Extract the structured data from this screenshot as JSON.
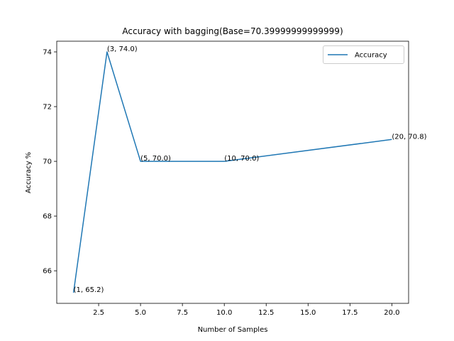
{
  "chart_data": {
    "type": "line",
    "title": "Accuracy with bagging(Base=70.39999999999999)",
    "xlabel": "Number of Samples",
    "ylabel": "Accuracy %",
    "xlim": [
      -0.0,
      21.0
    ],
    "ylim": [
      64.81,
      74.39
    ],
    "xticks": [
      "2.5",
      "5.0",
      "7.5",
      "10.0",
      "12.5",
      "15.0",
      "17.5",
      "20.0"
    ],
    "yticks": [
      "66",
      "68",
      "70",
      "72",
      "74"
    ],
    "xtick_values": [
      2.5,
      5.0,
      7.5,
      10.0,
      12.5,
      15.0,
      17.5,
      20.0
    ],
    "ytick_values": [
      66,
      68,
      70,
      72,
      74
    ],
    "grid": false,
    "legend_position": "top-right",
    "series": [
      {
        "name": "Accuracy",
        "color": "#1f77b4",
        "x": [
          1,
          3,
          5,
          10,
          20
        ],
        "y": [
          65.2,
          74.0,
          70.0,
          70.0,
          70.8
        ]
      }
    ],
    "annotations": [
      {
        "x": 1,
        "y": 65.2,
        "text": "(1, 65.2)"
      },
      {
        "x": 3,
        "y": 74.0,
        "text": "(3, 74.0)"
      },
      {
        "x": 5,
        "y": 70.0,
        "text": "(5, 70.0)"
      },
      {
        "x": 10,
        "y": 70.0,
        "text": "(10, 70.0)"
      },
      {
        "x": 20,
        "y": 70.8,
        "text": "(20, 70.8)"
      }
    ]
  }
}
